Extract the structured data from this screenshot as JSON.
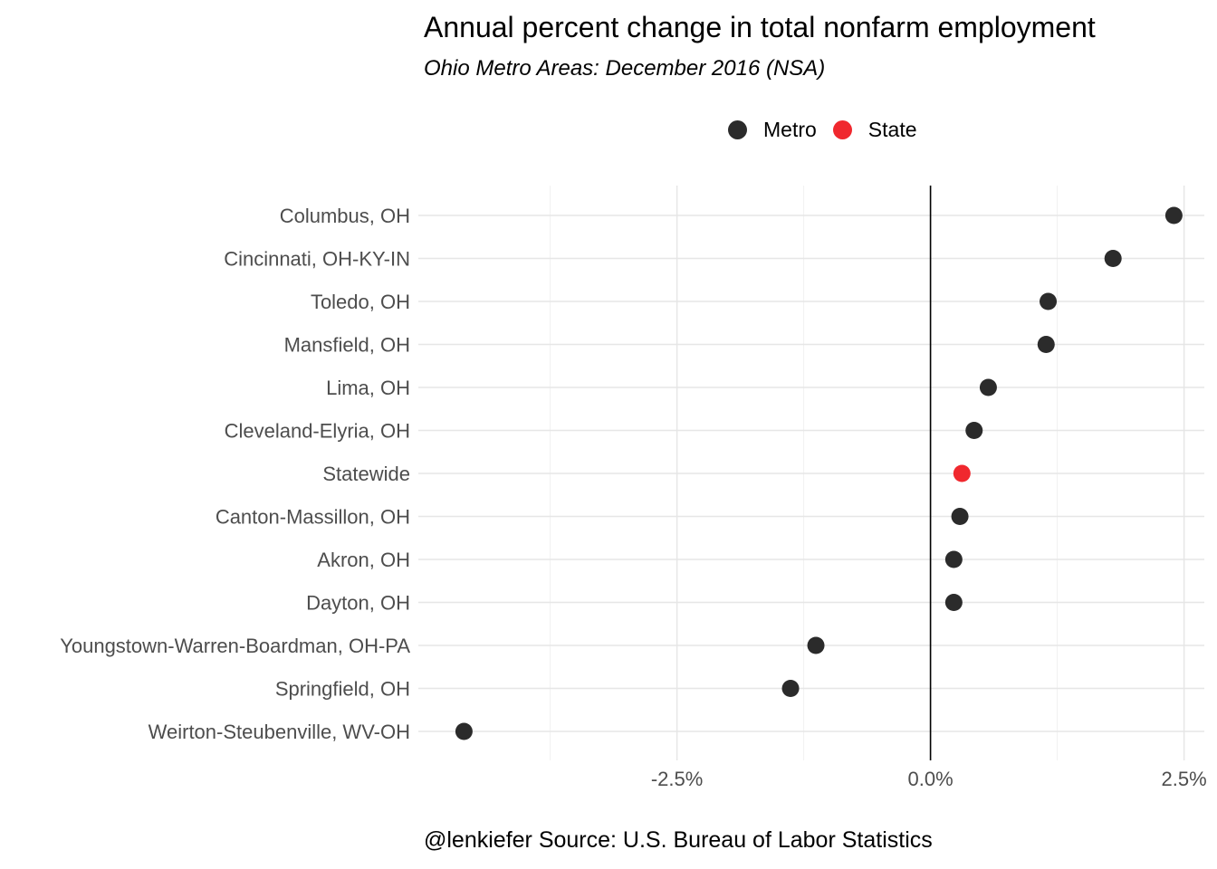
{
  "title": "Annual percent change in total nonfarm employment",
  "subtitle": "Ohio Metro Areas: December 2016 (NSA)",
  "caption": "@lenkiefer Source: U.S. Bureau of Labor Statistics",
  "legend": {
    "items": [
      {
        "label": "Metro",
        "color": "#2b2b2b"
      },
      {
        "label": "State",
        "color": "#f0282e"
      }
    ]
  },
  "chart_data": {
    "type": "scatter",
    "title": "Annual percent change in total nonfarm employment",
    "subtitle": "Ohio Metro Areas: December 2016 (NSA)",
    "xlabel": "",
    "ylabel": "",
    "xlim": [
      -5.05,
      2.7
    ],
    "x_ticks": [
      -2.5,
      0.0,
      2.5
    ],
    "x_tick_labels": [
      "-2.5%",
      "0.0%",
      "2.5%"
    ],
    "vline_at": 0,
    "grid": true,
    "legend_position": "top",
    "categories": [
      "Columbus, OH",
      "Cincinnati, OH-KY-IN",
      "Toledo, OH",
      "Mansfield, OH",
      "Lima, OH",
      "Cleveland-Elyria, OH",
      "Statewide",
      "Canton-Massillon, OH",
      "Akron, OH",
      "Dayton, OH",
      "Youngstown-Warren-Boardman, OH-PA",
      "Springfield, OH",
      "Weirton-Steubenville, WV-OH"
    ],
    "values": [
      2.4,
      1.8,
      1.16,
      1.14,
      0.57,
      0.43,
      0.31,
      0.29,
      0.23,
      0.23,
      -1.13,
      -1.38,
      -4.6
    ],
    "groups": [
      "Metro",
      "Metro",
      "Metro",
      "Metro",
      "Metro",
      "Metro",
      "State",
      "Metro",
      "Metro",
      "Metro",
      "Metro",
      "Metro",
      "Metro"
    ],
    "colors": {
      "Metro": "#2b2b2b",
      "State": "#f0282e"
    }
  }
}
